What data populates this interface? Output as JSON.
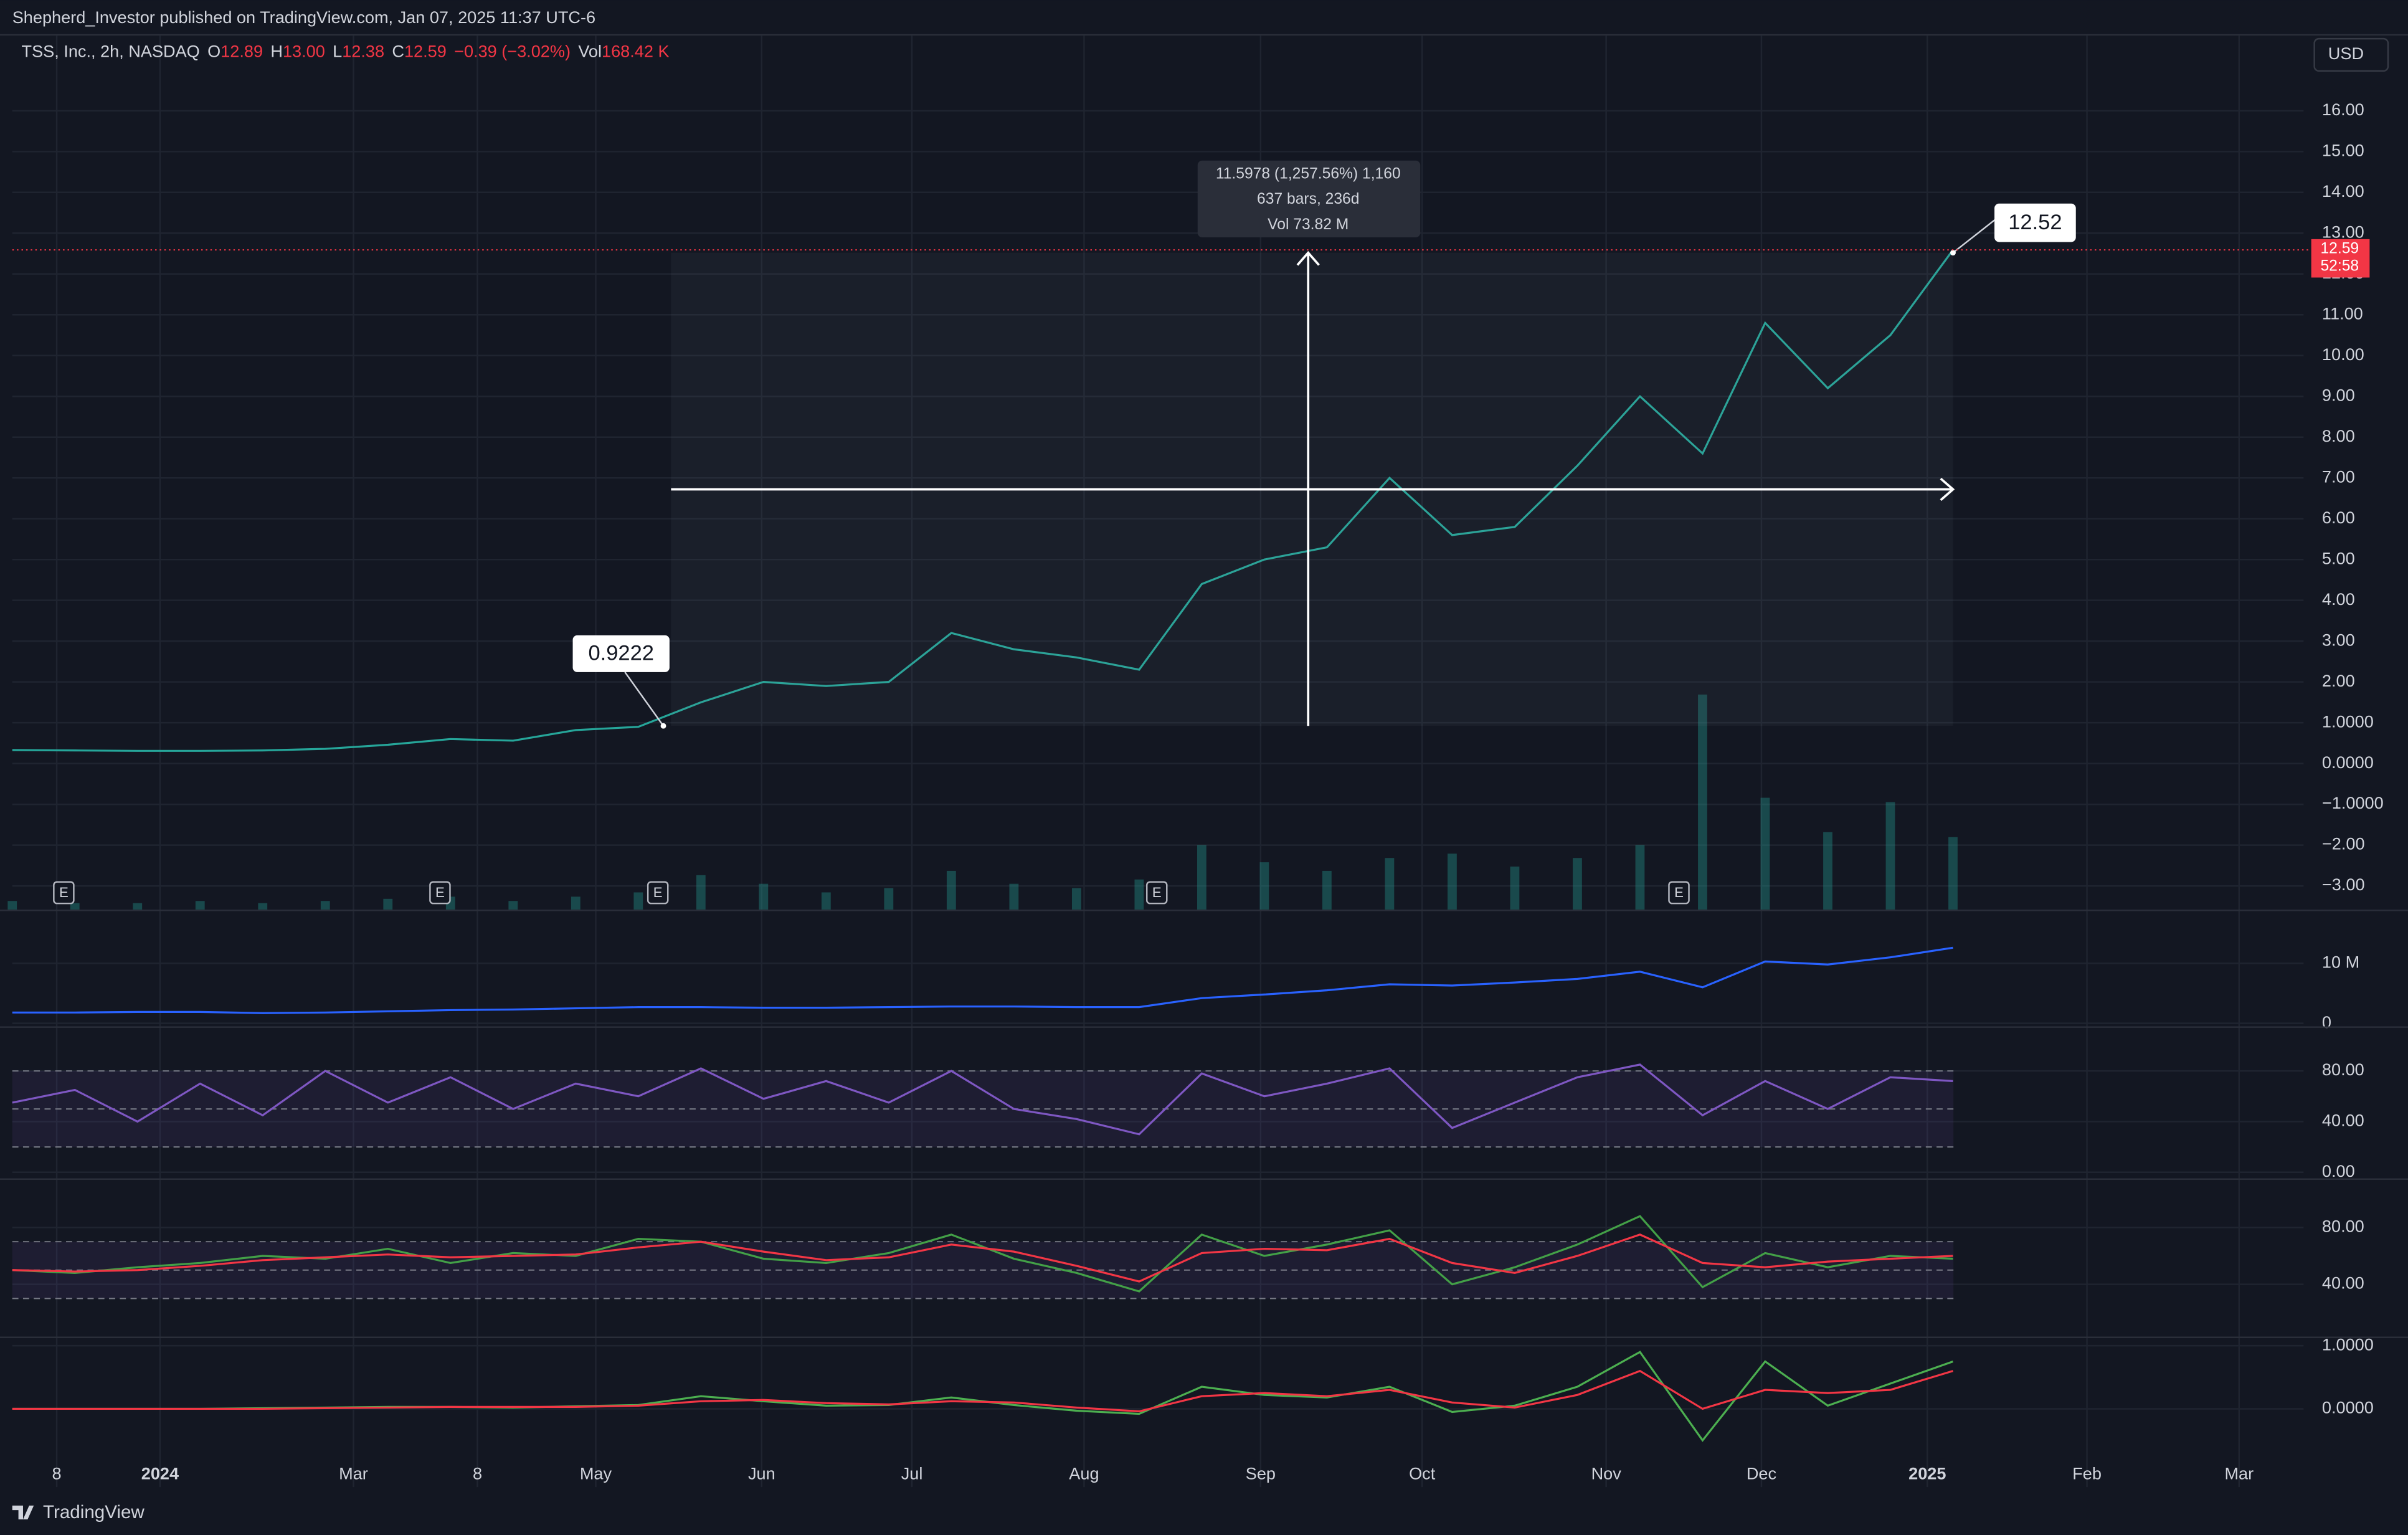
{
  "header": {
    "publisher": "Shepherd_Investor published on TradingView.com, Jan 07, 2025 11:37 UTC-6",
    "currency": "USD"
  },
  "legend": {
    "symbol": "TSS, Inc., 2h, NASDAQ",
    "items": [
      {
        "key": "O",
        "value": "12.89"
      },
      {
        "key": "H",
        "value": "13.00"
      },
      {
        "key": "L",
        "value": "12.38"
      },
      {
        "key": "C",
        "value": "12.59"
      }
    ],
    "change": "−0.39 (−3.02%)",
    "volume": {
      "key": "Vol",
      "value": "168.42 K"
    }
  },
  "annotations": {
    "start": {
      "x": 10.4,
      "value": 0.9222
    },
    "end": {
      "x": 31,
      "value": 12.52
    },
    "measure": [
      "11.5978 (1,257.56%) 1,160",
      "637 bars, 236d",
      "Vol 73.82 M"
    ],
    "last_price": 12.59,
    "countdown": "52:58",
    "earnings": [
      {
        "x": 0.81,
        "label": "E"
      },
      {
        "x": 6.82,
        "label": "E"
      },
      {
        "x": 10.3,
        "label": "E"
      },
      {
        "x": 18.27,
        "label": "E"
      },
      {
        "x": 26.61,
        "label": "E"
      }
    ]
  },
  "footer": {
    "brand": "TradingView"
  },
  "chart_data": [
    {
      "type": "line",
      "xlim": [
        0,
        36.6
      ],
      "xticks": [
        {
          "value": 0.71,
          "label": "8"
        },
        {
          "value": 2.36,
          "label": "2024"
        },
        {
          "value": 5.45,
          "label": "Mar"
        },
        {
          "value": 7.43,
          "label": "8"
        },
        {
          "value": 9.32,
          "label": "May"
        },
        {
          "value": 11.97,
          "label": "Jun"
        },
        {
          "value": 14.37,
          "label": "Jul"
        },
        {
          "value": 17.12,
          "label": "Aug"
        },
        {
          "value": 19.94,
          "label": "Sep"
        },
        {
          "value": 22.52,
          "label": "Oct"
        },
        {
          "value": 25.46,
          "label": "Nov"
        },
        {
          "value": 27.94,
          "label": "Dec"
        },
        {
          "value": 30.59,
          "label": "2025"
        },
        {
          "value": 33.14,
          "label": "Feb"
        },
        {
          "value": 35.57,
          "label": "Mar"
        }
      ],
      "bold_xticks": [
        1,
        12
      ],
      "ylim": [
        -3.58,
        17.88
      ],
      "yticks": [
        {
          "value": 16,
          "label": "16.00"
        },
        {
          "value": 15,
          "label": "15.00"
        },
        {
          "value": 14,
          "label": "14.00"
        },
        {
          "value": 13,
          "label": "13.00"
        },
        {
          "value": 12,
          "label": "12.00"
        },
        {
          "value": 11,
          "label": "11.00"
        },
        {
          "value": 10,
          "label": "10.00"
        },
        {
          "value": 9,
          "label": "9.00"
        },
        {
          "value": 8,
          "label": "8.00"
        },
        {
          "value": 7,
          "label": "7.00"
        },
        {
          "value": 6,
          "label": "6.00"
        },
        {
          "value": 5,
          "label": "5.00"
        },
        {
          "value": 4,
          "label": "4.00"
        },
        {
          "value": 3,
          "label": "3.00"
        },
        {
          "value": 2,
          "label": "2.00"
        },
        {
          "value": 1,
          "label": "1.0000"
        },
        {
          "value": 0,
          "label": "0.0000"
        },
        {
          "value": -1,
          "label": "−1.0000"
        },
        {
          "value": -2,
          "label": "−2.00"
        },
        {
          "value": -3,
          "label": "−3.00"
        }
      ],
      "grid": true,
      "series": [
        {
          "color": "#26a69a",
          "values": [
            0.33,
            0.32,
            0.31,
            0.31,
            0.32,
            0.36,
            0.46,
            0.6,
            0.56,
            0.82,
            0.9,
            1.5,
            2.0,
            1.9,
            2.0,
            3.2,
            2.8,
            2.6,
            2.3,
            4.4,
            5.0,
            5.3,
            7.0,
            5.6,
            5.8,
            7.3,
            9.0,
            7.6,
            10.8,
            9.2,
            10.5,
            12.59
          ]
        }
      ],
      "volume": {
        "color": "#26a69a",
        "values": [
          20,
          15,
          15,
          20,
          15,
          20,
          25,
          30,
          20,
          30,
          40,
          80,
          60,
          40,
          50,
          90,
          60,
          50,
          70,
          150,
          110,
          90,
          120,
          130,
          100,
          120,
          150,
          500,
          260,
          180,
          250,
          168.42
        ]
      }
    },
    {
      "type": "line",
      "ylim": [
        -500000,
        18700000
      ],
      "yticks": [
        {
          "value": 10000000,
          "label": "10 M"
        },
        0
      ],
      "grid": true,
      "series": [
        {
          "color": "#2962ff",
          "values": [
            1800000,
            1800000,
            1900000,
            1900000,
            1700000,
            1800000,
            2000000,
            2200000,
            2300000,
            2500000,
            2700000,
            2700000,
            2600000,
            2600000,
            2700000,
            2800000,
            2800000,
            2700000,
            2700000,
            4200000,
            4800000,
            5500000,
            6500000,
            6300000,
            6800000,
            7400000,
            8600000,
            6000000,
            10300000,
            9800000,
            11000000,
            12600000
          ]
        }
      ]
    },
    {
      "type": "line",
      "ylim": [
        -4.8,
        114
      ],
      "yticks": [
        {
          "value": 80,
          "label": "80.00"
        },
        {
          "value": 40,
          "label": "40.00"
        },
        {
          "value": 0,
          "label": "0.00"
        }
      ],
      "grid": true,
      "bands": [
        80,
        50,
        20
      ],
      "series": [
        {
          "color": "#7e57c2",
          "values": [
            55,
            65,
            40,
            70,
            45,
            80,
            55,
            75,
            50,
            70,
            60,
            82,
            58,
            72,
            55,
            80,
            50,
            42,
            30,
            78,
            60,
            70,
            82,
            35,
            55,
            75,
            85,
            45,
            72,
            50,
            75,
            72
          ]
        }
      ]
    },
    {
      "type": "line",
      "ylim": [
        3.2,
        113.5
      ],
      "yticks": [
        {
          "value": 80,
          "label": "80.00"
        },
        {
          "value": 40,
          "label": "40.00"
        }
      ],
      "grid": true,
      "bands": [
        70,
        50,
        30
      ],
      "series": [
        {
          "color": "#43a047",
          "values": [
            50,
            48,
            52,
            55,
            60,
            58,
            65,
            55,
            62,
            60,
            72,
            70,
            58,
            55,
            62,
            75,
            58,
            48,
            35,
            75,
            60,
            68,
            78,
            40,
            52,
            68,
            88,
            38,
            62,
            52,
            60,
            58
          ]
        },
        {
          "color": "#f23645",
          "values": [
            50,
            49,
            50,
            53,
            57,
            59,
            61,
            59,
            60,
            61,
            66,
            70,
            63,
            57,
            59,
            68,
            63,
            53,
            42,
            62,
            65,
            64,
            72,
            55,
            48,
            60,
            75,
            55,
            52,
            56,
            58,
            60
          ]
        }
      ]
    },
    {
      "type": "line",
      "ylim": [
        -1.24,
        1.12
      ],
      "yticks": [
        {
          "value": 1,
          "label": "1.0000"
        },
        {
          "value": 0,
          "label": "0.0000"
        }
      ],
      "grid": true,
      "series": [
        {
          "color": "#4caf50",
          "values": [
            0,
            0,
            0,
            0,
            0.01,
            0.02,
            0.03,
            0.03,
            0.02,
            0.04,
            0.06,
            0.2,
            0.12,
            0.05,
            0.06,
            0.18,
            0.06,
            -0.03,
            -0.08,
            0.35,
            0.22,
            0.18,
            0.35,
            -0.05,
            0.05,
            0.35,
            0.9,
            -0.5,
            0.75,
            0.05,
            0.4,
            0.75
          ]
        },
        {
          "color": "#f23645",
          "values": [
            0,
            0,
            0,
            0,
            0,
            0.01,
            0.02,
            0.03,
            0.03,
            0.03,
            0.05,
            0.12,
            0.14,
            0.09,
            0.07,
            0.12,
            0.1,
            0.02,
            -0.04,
            0.2,
            0.25,
            0.2,
            0.3,
            0.1,
            0.02,
            0.22,
            0.6,
            0,
            0.3,
            0.25,
            0.3,
            0.6
          ]
        }
      ]
    }
  ]
}
